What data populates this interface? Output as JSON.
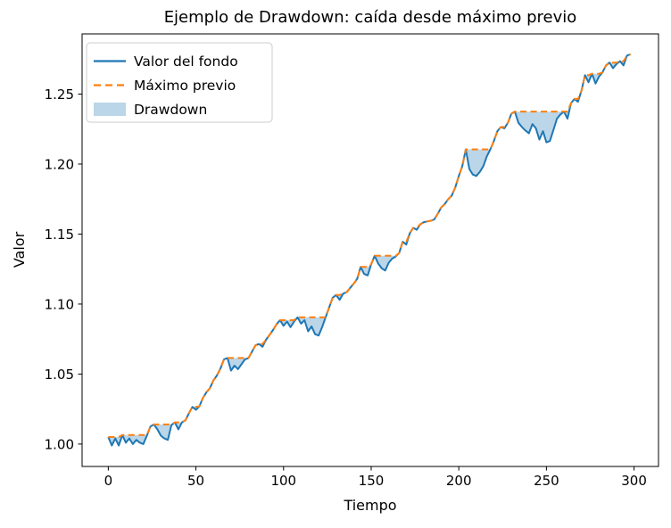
{
  "title": "Ejemplo de Drawdown: caída desde máximo previo",
  "legend": [
    {
      "label": "Valor del fondo",
      "style": "solid-line",
      "color": "#1f77b4"
    },
    {
      "label": "Máximo previo",
      "style": "dashed-line",
      "color": "#ff7f0e"
    },
    {
      "label": "Drawdown",
      "style": "patch",
      "color": "#1f77b4",
      "opacity": 0.3
    }
  ],
  "chart_data": {
    "type": "line",
    "title": "Ejemplo de Drawdown: caída desde máximo previo",
    "xlabel": "Tiempo",
    "ylabel": "Valor",
    "xlim": [
      -14.95,
      313.95
    ],
    "ylim": [
      0.984,
      1.293
    ],
    "grid": false,
    "legend_position": "upper left",
    "xticks": [
      0,
      50,
      100,
      150,
      200,
      250,
      300
    ],
    "xtick_labels": [
      "0",
      "50",
      "100",
      "150",
      "200",
      "250",
      "300"
    ],
    "yticks": [
      1.0,
      1.05,
      1.1,
      1.15,
      1.2,
      1.25
    ],
    "ytick_labels": [
      "1.00",
      "1.05",
      "1.10",
      "1.15",
      "1.20",
      "1.25"
    ],
    "fill_between": {
      "name": "Drawdown",
      "color": "#1f77b4",
      "opacity": 0.3
    },
    "x": [
      0,
      2,
      4,
      6,
      8,
      10,
      12,
      14,
      16,
      18,
      20,
      22,
      24,
      26,
      28,
      30,
      32,
      34,
      36,
      38,
      40,
      42,
      44,
      46,
      48,
      50,
      52,
      54,
      56,
      58,
      60,
      62,
      64,
      66,
      68,
      70,
      72,
      74,
      76,
      78,
      80,
      82,
      84,
      86,
      88,
      90,
      92,
      94,
      96,
      98,
      100,
      102,
      104,
      106,
      108,
      110,
      112,
      114,
      116,
      118,
      120,
      122,
      124,
      126,
      128,
      130,
      132,
      134,
      136,
      138,
      140,
      142,
      144,
      146,
      148,
      150,
      152,
      154,
      156,
      158,
      160,
      162,
      164,
      166,
      168,
      170,
      172,
      174,
      176,
      178,
      180,
      182,
      184,
      186,
      188,
      190,
      192,
      194,
      196,
      198,
      200,
      202,
      204,
      206,
      208,
      210,
      212,
      214,
      216,
      218,
      220,
      222,
      224,
      226,
      228,
      230,
      232,
      234,
      236,
      238,
      240,
      242,
      244,
      246,
      248,
      250,
      252,
      254,
      256,
      258,
      260,
      262,
      264,
      266,
      268,
      270,
      272,
      274,
      276,
      278,
      280,
      282,
      284,
      286,
      288,
      290,
      292,
      294,
      296,
      298
    ],
    "series": [
      {
        "name": "Valor del fondo",
        "color": "#1f77b4",
        "style": "solid",
        "values": [
          1.005,
          0.999,
          1.004,
          0.999,
          1.0065,
          1.001,
          1.004,
          1.0,
          1.003,
          1.001,
          1.0,
          1.006,
          1.0125,
          1.014,
          1.0105,
          1.006,
          1.004,
          1.003,
          1.0135,
          1.0155,
          1.0105,
          1.0155,
          1.017,
          1.022,
          1.0265,
          1.0245,
          1.027,
          1.033,
          1.037,
          1.04,
          1.0455,
          1.049,
          1.054,
          1.0605,
          1.0615,
          1.0525,
          1.056,
          1.0535,
          1.057,
          1.0605,
          1.0615,
          1.066,
          1.0705,
          1.0715,
          1.0695,
          1.0745,
          1.078,
          1.0815,
          1.0855,
          1.0885,
          1.0845,
          1.0875,
          1.0835,
          1.0875,
          1.0905,
          1.086,
          1.0885,
          1.0805,
          1.084,
          1.0785,
          1.0775,
          1.0835,
          1.0905,
          1.0975,
          1.1045,
          1.1065,
          1.103,
          1.1075,
          1.1085,
          1.1115,
          1.1145,
          1.118,
          1.1265,
          1.1215,
          1.1205,
          1.1285,
          1.1345,
          1.129,
          1.1255,
          1.124,
          1.1295,
          1.1325,
          1.134,
          1.1365,
          1.1445,
          1.1425,
          1.1505,
          1.1545,
          1.153,
          1.157,
          1.1585,
          1.159,
          1.1595,
          1.1605,
          1.1645,
          1.169,
          1.1715,
          1.175,
          1.1775,
          1.1835,
          1.1915,
          1.1985,
          1.2105,
          1.1965,
          1.1925,
          1.1915,
          1.1945,
          1.1985,
          1.2055,
          1.2105,
          1.2165,
          1.2235,
          1.2265,
          1.2255,
          1.2295,
          1.236,
          1.2375,
          1.2295,
          1.2265,
          1.224,
          1.222,
          1.2285,
          1.2255,
          1.2175,
          1.2235,
          1.2155,
          1.2165,
          1.2245,
          1.2325,
          1.2355,
          1.2375,
          1.2325,
          1.2435,
          1.2465,
          1.2445,
          1.2525,
          1.2635,
          1.2585,
          1.2645,
          1.2575,
          1.2625,
          1.2655,
          1.2705,
          1.2725,
          1.2685,
          1.2715,
          1.2735,
          1.2705,
          1.2775,
          1.2785
        ]
      },
      {
        "name": "Máximo previo",
        "color": "#ff7f0e",
        "style": "dashed",
        "values": [
          1.005,
          1.005,
          1.005,
          1.005,
          1.0065,
          1.0065,
          1.0065,
          1.0065,
          1.0065,
          1.0065,
          1.0065,
          1.0065,
          1.0125,
          1.014,
          1.014,
          1.014,
          1.014,
          1.014,
          1.014,
          1.0155,
          1.0155,
          1.0155,
          1.017,
          1.022,
          1.0265,
          1.0265,
          1.027,
          1.033,
          1.037,
          1.04,
          1.0455,
          1.049,
          1.054,
          1.0605,
          1.0615,
          1.0615,
          1.0615,
          1.0615,
          1.0615,
          1.0615,
          1.0615,
          1.066,
          1.0705,
          1.0715,
          1.0715,
          1.0745,
          1.078,
          1.0815,
          1.0855,
          1.0885,
          1.0885,
          1.0885,
          1.0885,
          1.0885,
          1.0905,
          1.0905,
          1.0905,
          1.0905,
          1.0905,
          1.0905,
          1.0905,
          1.0905,
          1.0905,
          1.0975,
          1.1045,
          1.1065,
          1.1065,
          1.1075,
          1.1085,
          1.1115,
          1.1145,
          1.118,
          1.1265,
          1.1265,
          1.1265,
          1.1285,
          1.1345,
          1.1345,
          1.1345,
          1.1345,
          1.1345,
          1.1345,
          1.1345,
          1.1365,
          1.1445,
          1.1445,
          1.1505,
          1.1545,
          1.1545,
          1.157,
          1.1585,
          1.159,
          1.1595,
          1.1605,
          1.1645,
          1.169,
          1.1715,
          1.175,
          1.1775,
          1.1835,
          1.1915,
          1.1985,
          1.2105,
          1.2105,
          1.2105,
          1.2105,
          1.2105,
          1.2105,
          1.2105,
          1.2105,
          1.2165,
          1.2235,
          1.2265,
          1.2265,
          1.2295,
          1.236,
          1.2375,
          1.2375,
          1.2375,
          1.2375,
          1.2375,
          1.2375,
          1.2375,
          1.2375,
          1.2375,
          1.2375,
          1.2375,
          1.2375,
          1.2375,
          1.2375,
          1.2375,
          1.2375,
          1.2435,
          1.2465,
          1.2465,
          1.2525,
          1.2635,
          1.2635,
          1.2645,
          1.2645,
          1.2645,
          1.2655,
          1.2705,
          1.2725,
          1.2725,
          1.2725,
          1.2735,
          1.2735,
          1.2775,
          1.2785
        ]
      }
    ]
  }
}
